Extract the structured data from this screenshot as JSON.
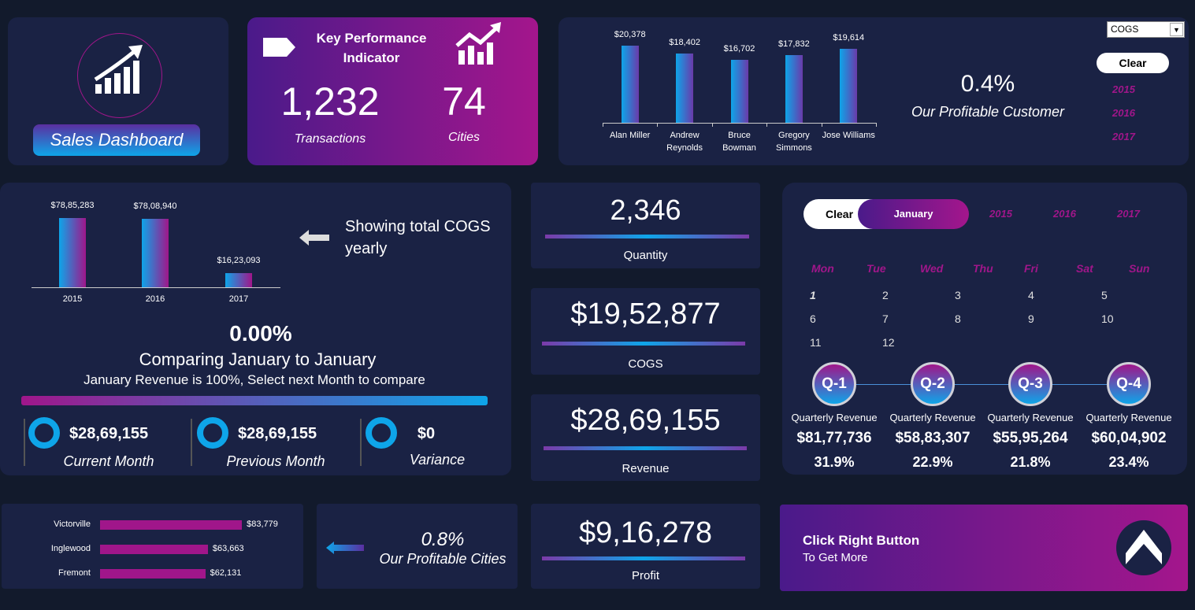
{
  "logo": {
    "title": "Sales Dashboard",
    "icon": "growth-chart-icon"
  },
  "kpi": {
    "title_line1": "Key Performance",
    "title_line2": "Indicator",
    "transactions_value": "1,232",
    "transactions_label": "Transactions",
    "cities_value": "74",
    "cities_label": "Cities"
  },
  "customer_panel": {
    "dropdown_value": "COGS",
    "clear_label": "Clear",
    "years": [
      "2015",
      "2016",
      "2017"
    ],
    "percent": "0.4%",
    "caption": "Our Profitable Customer"
  },
  "yearly_panel": {
    "note": "Showing total COGS yearly",
    "percent": "0.00%",
    "compare_title": "Comparing January to January",
    "compare_sub": "January Revenue is 100%, Select next Month to compare",
    "stats": [
      {
        "value": "$28,69,155",
        "label": "Current Month"
      },
      {
        "value": "$28,69,155",
        "label": "Previous Month"
      },
      {
        "value": "$0",
        "label": "Variance"
      }
    ]
  },
  "cards": [
    {
      "value": "2,346",
      "label": "Quantity"
    },
    {
      "value": "$19,52,877",
      "label": "COGS"
    },
    {
      "value": "$28,69,155",
      "label": "Revenue"
    },
    {
      "value": "$9,16,278",
      "label": "Profit"
    }
  ],
  "calendar": {
    "clear_label": "Clear",
    "month": "January",
    "years": [
      "2015",
      "2016",
      "2017"
    ],
    "weekdays": [
      "Mon",
      "Tue",
      "Wed",
      "Thu",
      "Fri",
      "Sat",
      "Sun"
    ],
    "days": [
      "1",
      "2",
      "3",
      "4",
      "5",
      "6",
      "7",
      "8",
      "9",
      "10",
      "11",
      "12"
    ],
    "quarters": [
      {
        "label": "Q-1",
        "caption": "Quarterly Revenue",
        "value": "$81,77,736",
        "percent": "31.9%"
      },
      {
        "label": "Q-2",
        "caption": "Quarterly Revenue",
        "value": "$58,83,307",
        "percent": "22.9%"
      },
      {
        "label": "Q-3",
        "caption": "Quarterly Revenue",
        "value": "$55,95,264",
        "percent": "21.8%"
      },
      {
        "label": "Q-4",
        "caption": "Quarterly Revenue",
        "value": "$60,04,902",
        "percent": "23.4%"
      }
    ]
  },
  "cities_panel": {
    "percent": "0.8%",
    "caption": "Our Profitable Cities"
  },
  "cta": {
    "title": "Click Right Button",
    "subtitle": "To Get More"
  },
  "colors": {
    "background": "#121a2c",
    "panel": "#1a2244",
    "accent_magenta": "#a0168a",
    "accent_blue": "#0ea5e9"
  },
  "chart_data": [
    {
      "type": "bar",
      "categories": [
        "Alan Miller",
        "Andrew Reynolds",
        "Bruce Bowman",
        "Gregory Simmons",
        "Jose Williams"
      ],
      "values": [
        20378,
        18402,
        16702,
        17832,
        19614
      ],
      "data_labels": [
        "$20,378",
        "$18,402",
        "$16,702",
        "$17,832",
        "$19,614"
      ],
      "ylim": [
        0,
        25000
      ]
    },
    {
      "type": "bar",
      "categories": [
        "2015",
        "2016",
        "2017"
      ],
      "values": [
        7885283,
        7808940,
        1623093
      ],
      "data_labels": [
        "$78,85,283",
        "$78,08,940",
        "$16,23,093"
      ],
      "ylim": [
        0,
        10000000
      ]
    },
    {
      "type": "bar",
      "orientation": "horizontal",
      "categories": [
        "Victorville",
        "Inglewood",
        "Fremont"
      ],
      "values": [
        83779,
        63663,
        62131
      ],
      "data_labels": [
        "$83,779",
        "$63,663",
        "$62,131"
      ],
      "xlim": [
        0,
        100000
      ]
    }
  ]
}
